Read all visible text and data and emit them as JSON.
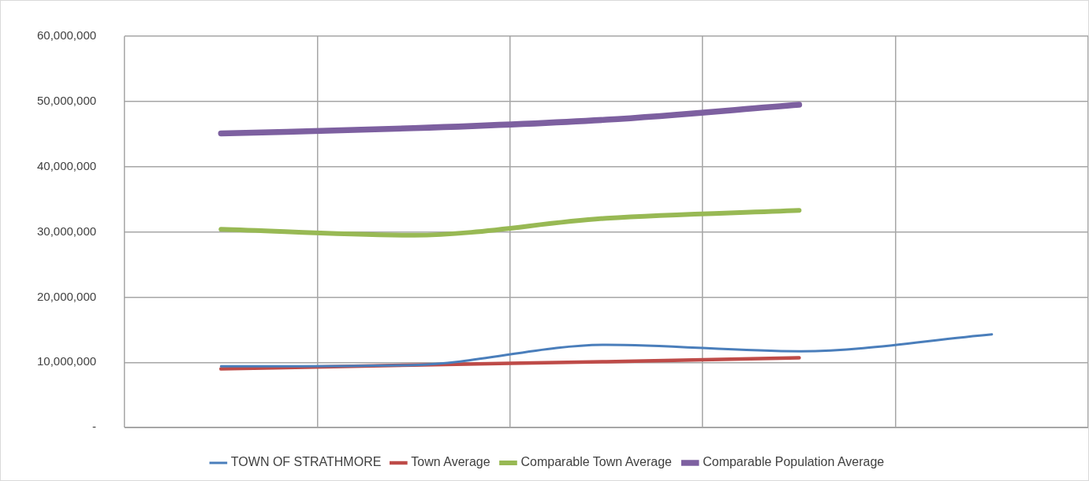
{
  "chart_data": {
    "type": "line",
    "categories": [
      null,
      null,
      null,
      null,
      null
    ],
    "series": [
      {
        "name": "TOWN OF STRATHMORE",
        "color": "#4a7ebb",
        "values": [
          9400000,
          9600000,
          12700000,
          11700000,
          14300000
        ]
      },
      {
        "name": "Town Average",
        "color": "#be4b48",
        "values": [
          9000000,
          9600000,
          10100000,
          10700000,
          null
        ]
      },
      {
        "name": "Comparable Town Average",
        "color": "#98b954",
        "values": [
          30400000,
          29500000,
          32100000,
          33300000,
          null
        ]
      },
      {
        "name": "Comparable Population Average",
        "color": "#7d60a0",
        "values": [
          45100000,
          45900000,
          47200000,
          49500000,
          null
        ]
      }
    ],
    "ylim": [
      0,
      60000000
    ],
    "yticks": [
      {
        "value": 0,
        "label": "-"
      },
      {
        "value": 10000000,
        "label": "10,000,000"
      },
      {
        "value": 20000000,
        "label": "20,000,000"
      },
      {
        "value": 30000000,
        "label": "30,000,000"
      },
      {
        "value": 40000000,
        "label": "40,000,000"
      },
      {
        "value": 50000000,
        "label": "50,000,000"
      },
      {
        "value": 60000000,
        "label": "60,000,000"
      }
    ],
    "grid": true,
    "legend": "bottom",
    "marker": "none",
    "line_style": "solid"
  }
}
